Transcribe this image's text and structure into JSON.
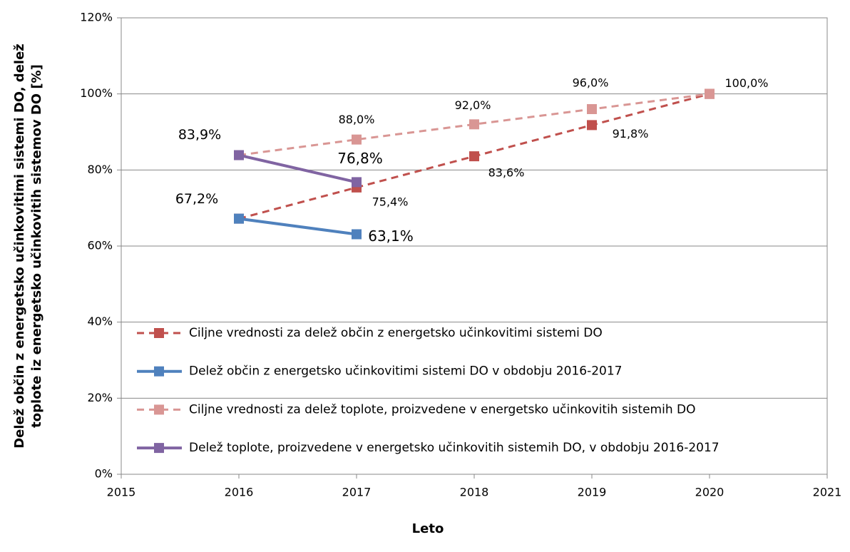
{
  "chart_data": {
    "type": "line",
    "y_label": [
      "Delež občin z energetsko učinkovitimi sistemi DO, delež",
      "toplote iz energetsko učinkovitih sistemov DO [%]"
    ],
    "x_label": "Leto",
    "xlim": [
      2015,
      2021
    ],
    "xticks": [
      2015,
      2016,
      2017,
      2018,
      2019,
      2020,
      2021
    ],
    "ylim": [
      0,
      120
    ],
    "yticks": [
      {
        "value": 0,
        "label": "0%"
      },
      {
        "value": 20,
        "label": "20%"
      },
      {
        "value": 40,
        "label": "40%"
      },
      {
        "value": 60,
        "label": "60%"
      },
      {
        "value": 80,
        "label": "80%"
      },
      {
        "value": 100,
        "label": "100%"
      },
      {
        "value": 120,
        "label": "120%"
      }
    ],
    "grid": true,
    "series": [
      {
        "name": "Ciljne vrednosti za delež občin z energetsko učinkovitimi sistemi DO",
        "color": "#c0504d",
        "dashed": true,
        "x": [
          2016,
          2017,
          2018,
          2019,
          2020
        ],
        "values": [
          67.2,
          75.4,
          83.6,
          91.8,
          100.0
        ],
        "value_labels": [
          null,
          "75,4%",
          "83,6%",
          "91,8%",
          "100,0%"
        ]
      },
      {
        "name": "Delež občin z energetsko učinkovitimi sistemi DO v obdobju 2016-2017",
        "color": "#4f81bd",
        "dashed": false,
        "x": [
          2016,
          2017
        ],
        "values": [
          67.2,
          63.1
        ],
        "value_labels": [
          "67,2%",
          "63,1%"
        ]
      },
      {
        "name": "Ciljne vrednosti za delež toplote, proizvedene v energetsko učinkovitih sistemih DO",
        "color": "#d99694",
        "dashed": true,
        "x": [
          2016,
          2017,
          2018,
          2019,
          2020
        ],
        "values": [
          83.9,
          88.0,
          92.0,
          96.0,
          100.0
        ],
        "value_labels": [
          null,
          "88,0%",
          "92,0%",
          "96,0%",
          null
        ]
      },
      {
        "name": "Delež toplote, proizvedene v energetsko učinkovitih sistemih DO, v obdobju 2016-2017",
        "color": "#8064a2",
        "dashed": false,
        "x": [
          2016,
          2017
        ],
        "values": [
          83.9,
          76.8
        ],
        "value_labels": [
          "83,9%",
          "76,8%"
        ]
      }
    ]
  }
}
